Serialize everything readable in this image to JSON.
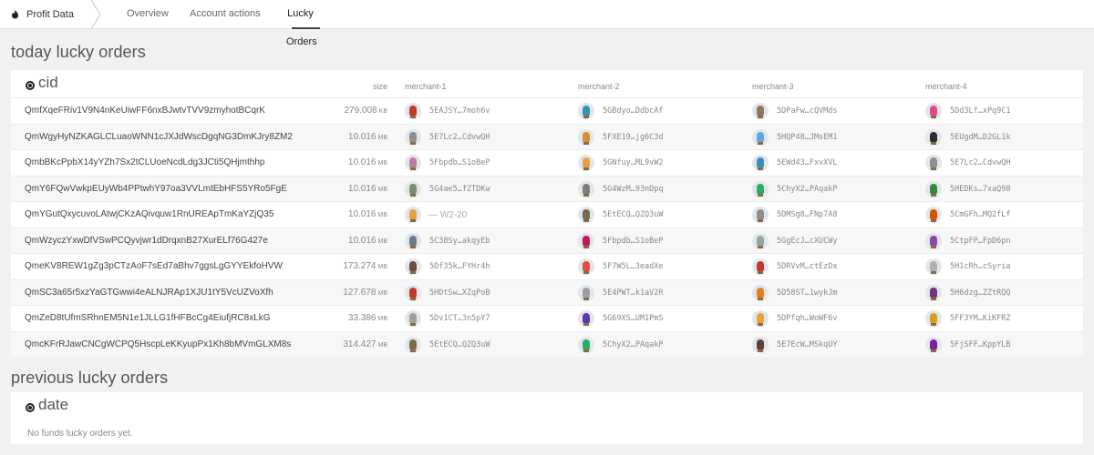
{
  "header": {
    "brand": "Profit Data",
    "tabs": [
      {
        "label": "Overview",
        "active": false
      },
      {
        "label": "Account actions",
        "active": false
      },
      {
        "label": "Lucky Orders",
        "active": true
      }
    ]
  },
  "today": {
    "title": "today lucky orders",
    "group_label": "cid",
    "columns": {
      "size": "size",
      "m1": "merchant-1",
      "m2": "merchant-2",
      "m3": "merchant-3",
      "m4": "merchant-4"
    },
    "rows": [
      {
        "cid": "QmfXqeFRiv1V9N4nKeUiwFF6nxBJwtvTVV9zmyhotBCqrK",
        "size": "279.008",
        "unit": "KB",
        "m": [
          {
            "addr": "5EAJSY…7moh6v",
            "color": "#c0392b"
          },
          {
            "addr": "5GBdyo…DdbcAf",
            "color": "#3a8fb7"
          },
          {
            "addr": "5DPaFw…cQVMds",
            "color": "#8e7a5a"
          },
          {
            "addr": "5Dd3Lf…xPq9C1",
            "color": "#e84393"
          }
        ]
      },
      {
        "cid": "QmWgyHyNZKAGLCLuaoWNN1cJXJdWscDgqNG3DmKJry8ZM2",
        "size": "10.016",
        "unit": "MB",
        "m": [
          {
            "addr": "5E7Lc2…CdvwQH",
            "color": "#8e8e8e"
          },
          {
            "addr": "5FXE19…jg6C3d",
            "color": "#d98c3a"
          },
          {
            "addr": "5HQP48…JMsEM1",
            "color": "#5aa9e6"
          },
          {
            "addr": "5EUgdM…D2GL1k",
            "color": "#2d2d2d"
          }
        ]
      },
      {
        "cid": "QmbBKcPpbX14yYZh7Sx2tCLUoeNcdLdg3JCti5QHjmthhp",
        "size": "10.016",
        "unit": "MB",
        "m": [
          {
            "addr": "5Fbpdb…S1oBeP",
            "color": "#c27aa8"
          },
          {
            "addr": "5GNfuy…ML9vW2",
            "color": "#e6a23c"
          },
          {
            "addr": "5EWd43…FxvXVL",
            "color": "#3a8fb7"
          },
          {
            "addr": "5E7Lc2…CdvwQH",
            "color": "#8e8e8e"
          }
        ]
      },
      {
        "cid": "QmY6FQwVwkpEUyWb4PPtwhY97oa3VVLmtEbHFS5YRo5FgE",
        "size": "10.016",
        "unit": "MB",
        "m": [
          {
            "addr": "5G4ae5…fZTDKw",
            "color": "#7a8f6a"
          },
          {
            "addr": "5G4WzM…93nDpq",
            "color": "#7d7d7d"
          },
          {
            "addr": "5ChyX2…PAqakP",
            "color": "#27ae60"
          },
          {
            "addr": "5HEDKs…7xaQ98",
            "color": "#2e8b3d"
          }
        ]
      },
      {
        "cid": "QmYGutQxycuvoLAtwjCKzAQivquw1RnUREApTmKaYZjQ35",
        "size": "10.016",
        "unit": "MB",
        "m": [
          {
            "addr": "",
            "color": "#e6a23c",
            "dash": "— W2-20"
          },
          {
            "addr": "5EtECQ…QZQ3uW",
            "color": "#7a6a4a"
          },
          {
            "addr": "5DMSg8…FNp7A8",
            "color": "#8e8e8e"
          },
          {
            "addr": "5CmGFh…MQ2fLf",
            "color": "#d35400"
          }
        ]
      },
      {
        "cid": "QmWzyczYxwDfVSwPCQyvjwr1dDrqxnB27XurELf76G427e",
        "size": "10.016",
        "unit": "MB",
        "m": [
          {
            "addr": "5C38Sy…akqyEb",
            "color": "#6c7a89"
          },
          {
            "addr": "5Fbpdb…S1oBeP",
            "color": "#c2185b"
          },
          {
            "addr": "5GgEcJ…cXUCWy",
            "color": "#95a5a6"
          },
          {
            "addr": "5CtpFP…FpD6pn",
            "color": "#8e44ad"
          }
        ]
      },
      {
        "cid": "QmeKV8REW1gZg3pCTzAoF7sEd7aBhv7ggsLgGYYEkfoHVW",
        "size": "173.274",
        "unit": "MB",
        "m": [
          {
            "addr": "5Df35k…FYHr4h",
            "color": "#6d4c41"
          },
          {
            "addr": "5F7W5L…3eadXe",
            "color": "#e74c3c"
          },
          {
            "addr": "5DRVvM…ctEzDx",
            "color": "#c0392b"
          },
          {
            "addr": "5H1cRh…cSyria",
            "color": "#b0b0b0"
          }
        ]
      },
      {
        "cid": "QmSC3a65r5xzYaGTGwwi4eALNJRAp1XJU1tY5VcUZVoXfh",
        "size": "127.678",
        "unit": "MB",
        "m": [
          {
            "addr": "5HDtSw…XZqPoB",
            "color": "#c0392b"
          },
          {
            "addr": "5E4PWT…k1aV2R",
            "color": "#9e9e9e"
          },
          {
            "addr": "5D58ST…1wykJm",
            "color": "#e67e22"
          },
          {
            "addr": "5H6dzg…ZZtRQQ",
            "color": "#6c3483"
          }
        ]
      },
      {
        "cid": "QmZeD8tUfmSRhnEM5N1e1JLLG1fHFBcCg4EiufjRC8xLkG",
        "size": "33.386",
        "unit": "MB",
        "m": [
          {
            "addr": "5Dv1CT…3n5pY7",
            "color": "#9e9e9e"
          },
          {
            "addr": "5G69XS…UM1PmS",
            "color": "#5e35b1"
          },
          {
            "addr": "5DPfqh…WoWF6v",
            "color": "#e6a23c"
          },
          {
            "addr": "5FF3YM…KiKFRZ",
            "color": "#d4a017"
          }
        ]
      },
      {
        "cid": "QmcKFrRJawCNCgWCPQ5HscpLeKKyupPx1Kh8bMVmGLXM8s",
        "size": "314.427",
        "unit": "MB",
        "m": [
          {
            "addr": "5EtECQ…QZQ3uW",
            "color": "#7a6a4a"
          },
          {
            "addr": "5ChyX2…PAqakP",
            "color": "#27ae60"
          },
          {
            "addr": "5E7EcW…MSkqUY",
            "color": "#5d4037"
          },
          {
            "addr": "5FjSFF…KppYLB",
            "color": "#7b1fa2"
          }
        ]
      }
    ]
  },
  "previous": {
    "title": "previous lucky orders",
    "group_label": "date",
    "empty_text": "No funds lucky orders yet."
  }
}
